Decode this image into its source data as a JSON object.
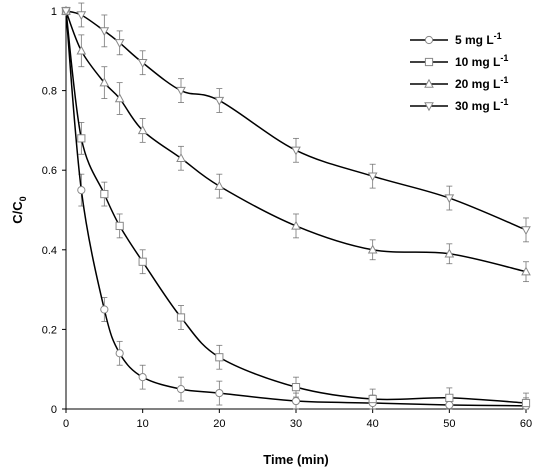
{
  "chart_data": {
    "type": "line",
    "xlabel": "Time (min)",
    "ylabel": "C/C",
    "ylabel_subscript": "0",
    "xlim": [
      0,
      60
    ],
    "ylim": [
      0,
      1
    ],
    "xticks": [
      "0",
      "10",
      "20",
      "30",
      "40",
      "50",
      "60"
    ],
    "yticks": [
      "0",
      "0.2",
      "0.4",
      "0.6",
      "0.8",
      "1"
    ],
    "grid": false,
    "legend_position": "top-right",
    "line_color": "#000000",
    "series": [
      {
        "name": "5 mg L",
        "name_superscript": "-1",
        "marker": "circle",
        "x": [
          0,
          2,
          5,
          7,
          10,
          15,
          20,
          30,
          40,
          50,
          60
        ],
        "y": [
          1.0,
          0.55,
          0.25,
          0.14,
          0.08,
          0.05,
          0.04,
          0.02,
          0.015,
          0.01,
          0.008
        ],
        "err": [
          0.0,
          0.04,
          0.03,
          0.03,
          0.03,
          0.03,
          0.03,
          0.02,
          0.02,
          0.02,
          0.02
        ]
      },
      {
        "name": "10 mg L",
        "name_superscript": "-1",
        "marker": "square",
        "x": [
          0,
          2,
          5,
          7,
          10,
          15,
          20,
          30,
          40,
          50,
          60
        ],
        "y": [
          1.0,
          0.68,
          0.54,
          0.46,
          0.37,
          0.23,
          0.13,
          0.055,
          0.025,
          0.028,
          0.015
        ],
        "err": [
          0.0,
          0.04,
          0.03,
          0.03,
          0.03,
          0.03,
          0.03,
          0.025,
          0.025,
          0.025,
          0.025
        ]
      },
      {
        "name": "20 mg L",
        "name_superscript": "-1",
        "marker": "triangle-up",
        "x": [
          0,
          2,
          5,
          7,
          10,
          15,
          20,
          30,
          40,
          50,
          60
        ],
        "y": [
          1.0,
          0.9,
          0.82,
          0.78,
          0.7,
          0.63,
          0.56,
          0.46,
          0.4,
          0.39,
          0.345
        ],
        "err": [
          0.0,
          0.04,
          0.04,
          0.04,
          0.03,
          0.03,
          0.03,
          0.03,
          0.025,
          0.025,
          0.025
        ]
      },
      {
        "name": "30 mg L",
        "name_superscript": "-1",
        "marker": "triangle-down",
        "x": [
          0,
          2,
          5,
          7,
          10,
          15,
          20,
          30,
          40,
          50,
          60
        ],
        "y": [
          1.0,
          0.99,
          0.95,
          0.92,
          0.87,
          0.8,
          0.775,
          0.65,
          0.585,
          0.53,
          0.45
        ],
        "err": [
          0.0,
          0.03,
          0.04,
          0.03,
          0.03,
          0.03,
          0.03,
          0.03,
          0.03,
          0.03,
          0.03
        ]
      }
    ]
  }
}
